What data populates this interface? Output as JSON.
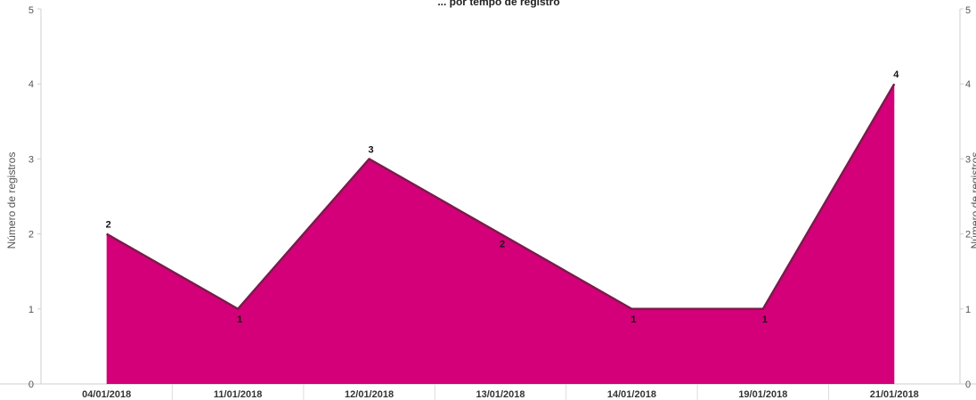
{
  "chart_data": {
    "type": "area",
    "title": "... por tempo de registro",
    "ylabel": "Número de registros",
    "y2label": "Número de registros",
    "categories": [
      "04/01/2018",
      "11/01/2018",
      "12/01/2018",
      "13/01/2018",
      "14/01/2018",
      "19/01/2018",
      "21/01/2018"
    ],
    "values": [
      2,
      1,
      3,
      2,
      1,
      1,
      4
    ],
    "data_labels": [
      "2",
      "1",
      "3",
      "2",
      "1",
      "1",
      "4"
    ],
    "ylim": [
      0,
      5
    ],
    "yticks": [
      "0",
      "1",
      "2",
      "3",
      "4",
      "5"
    ],
    "grid": false,
    "colors": {
      "fill": "#D4007A",
      "line": "#7A1B4B"
    }
  }
}
